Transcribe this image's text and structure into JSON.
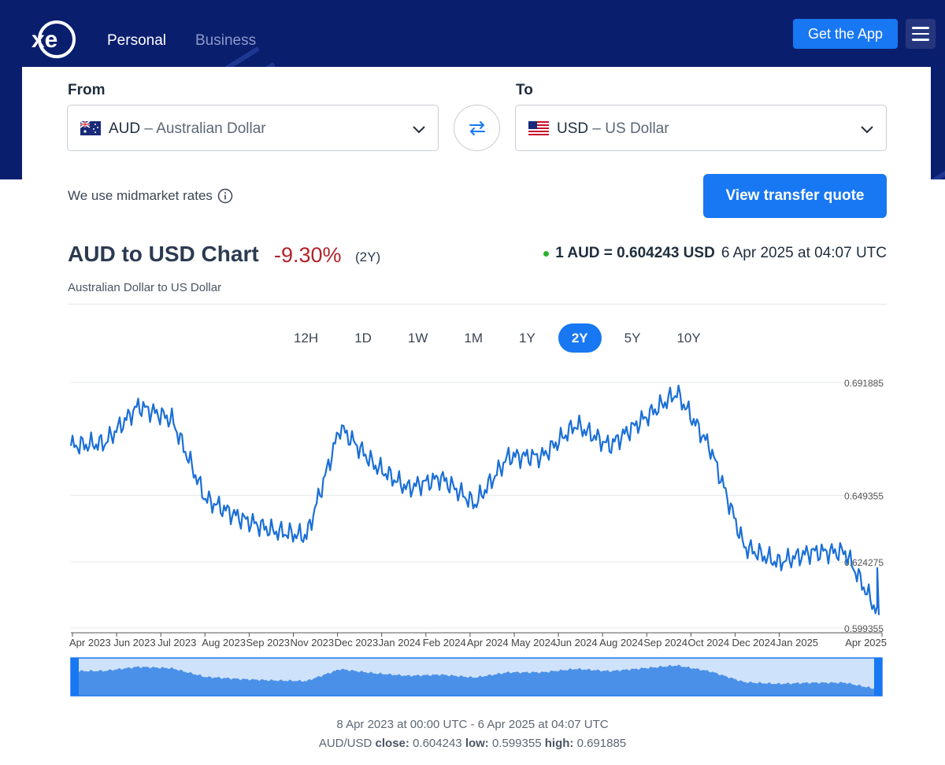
{
  "nav": {
    "personal": "Personal",
    "business": "Business",
    "get_app": "Get the App"
  },
  "converter": {
    "from_label": "From",
    "to_label": "To",
    "from_code": "AUD",
    "from_name": "Australian Dollar",
    "to_code": "USD",
    "to_name": "US Dollar",
    "dash": "–",
    "midmarket": "We use midmarket rates",
    "quote_button": "View transfer quote"
  },
  "header": {
    "title": "AUD to USD Chart",
    "change": "-9.30%",
    "period": "(2Y)",
    "subtitle": "Australian Dollar to US Dollar",
    "rate": "1 AUD = 0.604243 USD",
    "timestamp": "6 Apr 2025 at 04:07 UTC"
  },
  "tabs": [
    "12H",
    "1D",
    "1W",
    "1M",
    "1Y",
    "2Y",
    "5Y",
    "10Y"
  ],
  "active_tab": "2Y",
  "colors": {
    "brand_navy": "#0a1e6e",
    "accent_blue": "#1877f2",
    "negative_red": "#b0242b",
    "line_blue": "#1b6fd6",
    "live_green": "#2bb32b"
  },
  "chart_data": {
    "type": "line",
    "title": "AUD to USD Chart",
    "series": [
      {
        "name": "AUD/USD"
      }
    ],
    "x_tick_labels": [
      "Apr 2023",
      "Jun 2023",
      "Jul 2023",
      "Aug 2023",
      "Sep 2023",
      "Nov 2023",
      "Dec 2023",
      "Jan 2024",
      "Feb 2024",
      "Apr 2024",
      "May 2024",
      "Jun 2024",
      "Aug 2024",
      "Sep 2024",
      "Oct 2024",
      "Dec 2024",
      "Jan 2025",
      "Apr 2025"
    ],
    "y_tick_labels": [
      "0.691885",
      "0.649355",
      "0.624275",
      "0.599355"
    ],
    "x": [
      "2023-04",
      "2023-05",
      "2023-06",
      "2023-07",
      "2023-08",
      "2023-09",
      "2023-10",
      "2023-11",
      "2023-12",
      "2024-01",
      "2024-02",
      "2024-03",
      "2024-04",
      "2024-05",
      "2024-06",
      "2024-07",
      "2024-08",
      "2024-09",
      "2024-10",
      "2024-11",
      "2024-12",
      "2025-01",
      "2025-02",
      "2025-03",
      "2025-04"
    ],
    "values": [
      0.668,
      0.669,
      0.683,
      0.678,
      0.648,
      0.641,
      0.636,
      0.634,
      0.675,
      0.661,
      0.652,
      0.656,
      0.646,
      0.664,
      0.664,
      0.676,
      0.668,
      0.678,
      0.688,
      0.667,
      0.63,
      0.624,
      0.628,
      0.628,
      0.604243
    ],
    "ylim": [
      0.599355,
      0.691885
    ],
    "close": "0.604243",
    "low": "0.599355",
    "high": "0.691885",
    "range_text": "8 Apr 2023 at 00:00 UTC - 6 Apr 2025 at 04:07 UTC",
    "pair": "AUD/USD",
    "close_label": "close:",
    "low_label": "low:",
    "high_label": "high:",
    "grid": true
  }
}
